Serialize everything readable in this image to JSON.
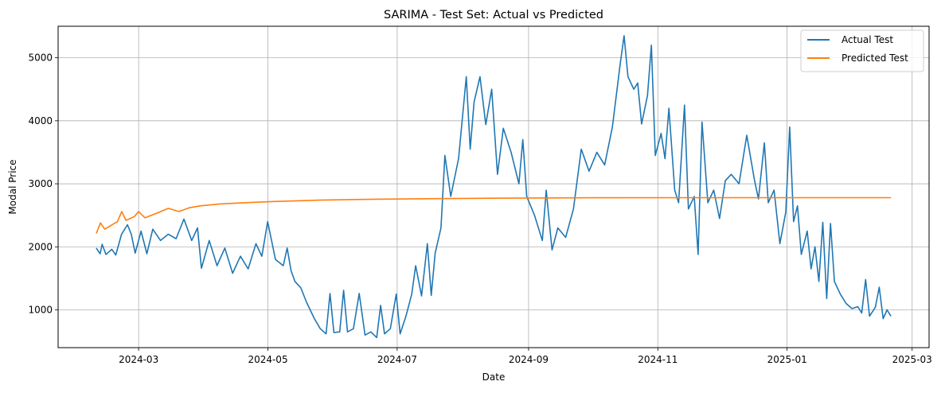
{
  "chart_data": {
    "type": "line",
    "title": "SARIMA - Test Set: Actual vs Predicted",
    "xlabel": "Date",
    "ylabel": "Modal Price",
    "x_start": "2024-02-10",
    "x_end": "2025-02-19",
    "xlim": [
      "2024-01-23",
      "2025-03-09"
    ],
    "ylim": [
      400,
      5500
    ],
    "yticks": [
      1000,
      2000,
      3000,
      4000,
      5000
    ],
    "xticks": [
      {
        "date": "2024-03-01",
        "label": "2024-03"
      },
      {
        "date": "2024-05-01",
        "label": "2024-05"
      },
      {
        "date": "2024-07-01",
        "label": "2024-07"
      },
      {
        "date": "2024-09-01",
        "label": "2024-09"
      },
      {
        "date": "2024-11-01",
        "label": "2024-11"
      },
      {
        "date": "2025-01-01",
        "label": "2025-01"
      },
      {
        "date": "2025-03-01",
        "label": "2025-03"
      }
    ],
    "grid": true,
    "legend": "top-right",
    "series": [
      {
        "name": "Actual Test",
        "color": "#1f77b4",
        "anchors": [
          [
            "2024-02-10",
            1980
          ],
          [
            "2024-02-12",
            1890
          ],
          [
            "2024-02-13",
            2040
          ],
          [
            "2024-02-15",
            1880
          ],
          [
            "2024-02-18",
            1960
          ],
          [
            "2024-02-20",
            1870
          ],
          [
            "2024-02-23",
            2200
          ],
          [
            "2024-02-26",
            2350
          ],
          [
            "2024-02-28",
            2200
          ],
          [
            "2024-03-01",
            1900
          ],
          [
            "2024-03-04",
            2250
          ],
          [
            "2024-03-07",
            1890
          ],
          [
            "2024-03-10",
            2280
          ],
          [
            "2024-03-14",
            2100
          ],
          [
            "2024-03-18",
            2200
          ],
          [
            "2024-03-22",
            2130
          ],
          [
            "2024-03-26",
            2440
          ],
          [
            "2024-03-30",
            2100
          ],
          [
            "2024-04-02",
            2300
          ],
          [
            "2024-04-04",
            1660
          ],
          [
            "2024-04-08",
            2100
          ],
          [
            "2024-04-12",
            1700
          ],
          [
            "2024-04-16",
            1980
          ],
          [
            "2024-04-20",
            1580
          ],
          [
            "2024-04-24",
            1850
          ],
          [
            "2024-04-28",
            1650
          ],
          [
            "2024-05-02",
            2050
          ],
          [
            "2024-05-05",
            1850
          ],
          [
            "2024-05-08",
            2400
          ],
          [
            "2024-05-12",
            1800
          ],
          [
            "2024-05-16",
            1700
          ],
          [
            "2024-05-18",
            1980
          ],
          [
            "2024-05-20",
            1620
          ],
          [
            "2024-05-22",
            1450
          ],
          [
            "2024-05-25",
            1350
          ],
          [
            "2024-05-28",
            1120
          ],
          [
            "2024-06-01",
            860
          ],
          [
            "2024-06-04",
            700
          ],
          [
            "2024-06-07",
            620
          ],
          [
            "2024-06-09",
            1260
          ],
          [
            "2024-06-11",
            640
          ],
          [
            "2024-06-14",
            650
          ],
          [
            "2024-06-16",
            1310
          ],
          [
            "2024-06-18",
            650
          ],
          [
            "2024-06-21",
            700
          ],
          [
            "2024-06-24",
            1260
          ],
          [
            "2024-06-27",
            600
          ],
          [
            "2024-06-30",
            650
          ],
          [
            "2024-07-03",
            560
          ],
          [
            "2024-07-05",
            1070
          ],
          [
            "2024-07-07",
            620
          ],
          [
            "2024-07-10",
            700
          ],
          [
            "2024-07-13",
            1250
          ],
          [
            "2024-07-15",
            620
          ],
          [
            "2024-07-18",
            900
          ],
          [
            "2024-07-21",
            1250
          ],
          [
            "2024-07-23",
            1700
          ],
          [
            "2024-07-26",
            1220
          ],
          [
            "2024-07-29",
            2050
          ],
          [
            "2024-07-31",
            1230
          ],
          [
            "2024-08-02",
            1900
          ],
          [
            "2024-08-05",
            2300
          ],
          [
            "2024-08-07",
            3450
          ],
          [
            "2024-08-10",
            2800
          ],
          [
            "2024-08-14",
            3400
          ],
          [
            "2024-08-18",
            4700
          ],
          [
            "2024-08-20",
            3550
          ],
          [
            "2024-08-22",
            4300
          ],
          [
            "2024-08-25",
            4700
          ],
          [
            "2024-08-28",
            3940
          ],
          [
            "2024-08-31",
            4500
          ],
          [
            "2024-09-03",
            3150
          ],
          [
            "2024-09-06",
            3880
          ],
          [
            "2024-09-10",
            3500
          ],
          [
            "2024-09-14",
            3000
          ],
          [
            "2024-09-16",
            3700
          ],
          [
            "2024-09-18",
            2800
          ],
          [
            "2024-09-22",
            2500
          ],
          [
            "2024-09-26",
            2100
          ],
          [
            "2024-09-28",
            2900
          ],
          [
            "2024-10-01",
            1950
          ],
          [
            "2024-10-04",
            2300
          ],
          [
            "2024-10-08",
            2150
          ],
          [
            "2024-10-12",
            2600
          ],
          [
            "2024-10-16",
            3550
          ],
          [
            "2024-10-20",
            3200
          ],
          [
            "2024-10-24",
            3500
          ],
          [
            "2024-10-28",
            3300
          ],
          [
            "2024-11-01",
            3900
          ],
          [
            "2024-11-05",
            4900
          ],
          [
            "2024-11-07",
            5350
          ],
          [
            "2024-11-09",
            4700
          ],
          [
            "2024-11-12",
            4500
          ],
          [
            "2024-11-14",
            4600
          ],
          [
            "2024-11-16",
            3950
          ],
          [
            "2024-11-19",
            4400
          ],
          [
            "2024-11-21",
            5200
          ],
          [
            "2024-11-23",
            3450
          ],
          [
            "2024-11-26",
            3800
          ],
          [
            "2024-11-28",
            3400
          ],
          [
            "2024-11-30",
            4200
          ],
          [
            "2024-12-03",
            2900
          ],
          [
            "2024-12-05",
            2700
          ],
          [
            "2024-12-08",
            4250
          ],
          [
            "2024-12-10",
            2600
          ],
          [
            "2024-12-13",
            2800
          ],
          [
            "2024-12-15",
            1880
          ],
          [
            "2024-12-17",
            3980
          ],
          [
            "2024-12-20",
            2700
          ],
          [
            "2024-12-23",
            2900
          ],
          [
            "2024-12-26",
            2450
          ],
          [
            "2024-12-29",
            3050
          ],
          [
            "2025-01-01",
            3150
          ],
          [
            "2025-01-05",
            3000
          ],
          [
            "2025-01-09",
            3770
          ],
          [
            "2025-01-13",
            3050
          ],
          [
            "2025-01-15",
            2760
          ],
          [
            "2025-01-18",
            3650
          ],
          [
            "2025-01-20",
            2700
          ],
          [
            "2025-01-23",
            2900
          ],
          [
            "2025-01-26",
            2050
          ],
          [
            "2025-01-29",
            2550
          ],
          [
            "2025-01-31",
            3900
          ],
          [
            "2025-02-02",
            2400
          ],
          [
            "2025-02-04",
            2650
          ],
          [
            "2025-02-06",
            1880
          ],
          [
            "2025-02-09",
            2250
          ],
          [
            "2025-02-11",
            1650
          ],
          [
            "2025-02-13",
            2000
          ],
          [
            "2025-02-15",
            1450
          ],
          [
            "2025-02-17",
            2390
          ],
          [
            "2025-02-19",
            1180
          ],
          [
            "2025-02-21",
            2370
          ],
          [
            "2025-02-23",
            1450
          ],
          [
            "2025-02-26",
            1250
          ],
          [
            "2025-03-01",
            1100
          ],
          [
            "2025-03-04",
            1020
          ],
          [
            "2025-03-07",
            1050
          ],
          [
            "2025-03-09",
            950
          ],
          [
            "2025-03-11",
            1480
          ],
          [
            "2025-03-13",
            900
          ],
          [
            "2025-03-16",
            1040
          ],
          [
            "2025-03-18",
            1360
          ],
          [
            "2025-03-20",
            860
          ],
          [
            "2025-03-22",
            1000
          ],
          [
            "2025-03-24",
            900
          ]
        ]
      },
      {
        "name": "Predicted Test",
        "color": "#ff7f0e",
        "anchors": [
          [
            "2024-02-10",
            2210
          ],
          [
            "2024-02-12",
            2380
          ],
          [
            "2024-02-14",
            2280
          ],
          [
            "2024-02-17",
            2340
          ],
          [
            "2024-02-20",
            2400
          ],
          [
            "2024-02-22",
            2560
          ],
          [
            "2024-02-24",
            2420
          ],
          [
            "2024-02-28",
            2480
          ],
          [
            "2024-03-01",
            2560
          ],
          [
            "2024-03-04",
            2460
          ],
          [
            "2024-03-07",
            2500
          ],
          [
            "2024-03-10",
            2540
          ],
          [
            "2024-03-15",
            2610
          ],
          [
            "2024-03-20",
            2560
          ],
          [
            "2024-03-25",
            2620
          ],
          [
            "2024-03-30",
            2650
          ],
          [
            "2024-04-08",
            2680
          ],
          [
            "2024-04-20",
            2700
          ],
          [
            "2024-05-05",
            2720
          ],
          [
            "2024-05-25",
            2740
          ],
          [
            "2024-06-20",
            2755
          ],
          [
            "2024-07-20",
            2765
          ],
          [
            "2024-08-20",
            2772
          ],
          [
            "2024-10-01",
            2778
          ],
          [
            "2024-12-01",
            2780
          ],
          [
            "2025-02-19",
            2780
          ]
        ]
      }
    ]
  }
}
